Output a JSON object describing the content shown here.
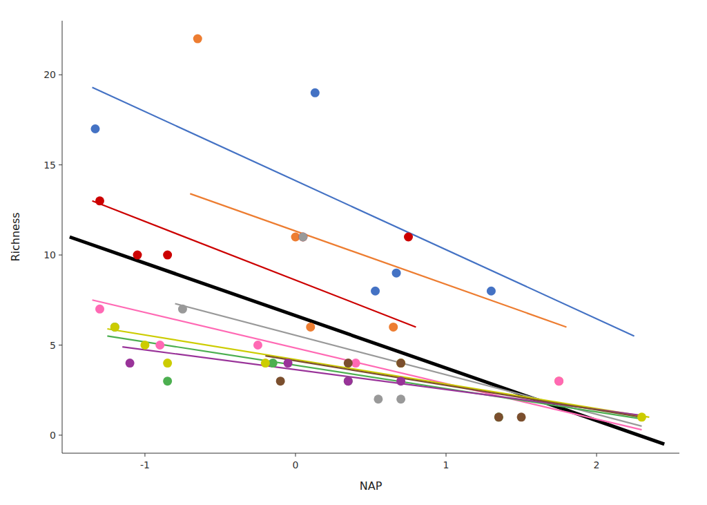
{
  "chart_data": {
    "type": "scatter",
    "xlabel": "NAP",
    "ylabel": "Richness",
    "xlim": [
      -1.55,
      2.55
    ],
    "ylim": [
      -1.0,
      23.0
    ],
    "xticks": [
      -1,
      0,
      1,
      2
    ],
    "yticks": [
      0,
      5,
      10,
      15,
      20
    ],
    "grid": false,
    "series": [
      {
        "type": "line",
        "color": "#4472C4",
        "x": [
          -1.35,
          2.25
        ],
        "values": [
          19.3,
          5.5
        ]
      },
      {
        "type": "scatter",
        "color": "#4472C4",
        "x": [
          -1.33,
          0.13,
          0.53,
          0.67,
          1.3
        ],
        "values": [
          17,
          19,
          8,
          9,
          8
        ]
      },
      {
        "type": "line",
        "color": "#ED7D31",
        "x": [
          -0.7,
          1.8
        ],
        "values": [
          13.4,
          6.0
        ]
      },
      {
        "type": "scatter",
        "color": "#ED7D31",
        "x": [
          -0.65,
          0.0,
          0.1,
          0.65,
          1.75
        ],
        "values": [
          22,
          11,
          6,
          6,
          3
        ]
      },
      {
        "type": "line",
        "color": "#CC0000",
        "x": [
          -1.35,
          0.8
        ],
        "values": [
          13.0,
          6.0
        ]
      },
      {
        "type": "scatter",
        "color": "#CC0000",
        "x": [
          -1.3,
          -1.05,
          -0.85,
          0.05,
          0.75
        ],
        "values": [
          13,
          10,
          10,
          11,
          11
        ]
      },
      {
        "type": "line",
        "color": "#FF69B4",
        "x": [
          -1.35,
          2.3
        ],
        "values": [
          7.5,
          0.3
        ]
      },
      {
        "type": "scatter",
        "color": "#FF69B4",
        "x": [
          -1.3,
          -0.9,
          -0.25,
          0.4,
          1.75
        ],
        "values": [
          7,
          5,
          5,
          4,
          3
        ]
      },
      {
        "type": "line",
        "color": "#999999",
        "x": [
          -0.8,
          2.3
        ],
        "values": [
          7.3,
          0.5
        ]
      },
      {
        "type": "scatter",
        "color": "#999999",
        "x": [
          -0.75,
          0.05,
          0.55,
          0.7
        ],
        "values": [
          7,
          11,
          2,
          2
        ]
      },
      {
        "type": "line",
        "color": "#4CAF50",
        "x": [
          -1.25,
          2.3
        ],
        "values": [
          5.5,
          0.9
        ]
      },
      {
        "type": "scatter",
        "color": "#4CAF50",
        "x": [
          -1.2,
          -0.85,
          -0.15,
          0.35,
          1.35
        ],
        "values": [
          6,
          3,
          4,
          3,
          1
        ]
      },
      {
        "type": "line",
        "color": "#CCCC00",
        "x": [
          -1.25,
          2.35
        ],
        "values": [
          5.9,
          1.0
        ]
      },
      {
        "type": "scatter",
        "color": "#CCCC00",
        "x": [
          -1.2,
          -1.0,
          -0.85,
          -0.2,
          0.7,
          2.3
        ],
        "values": [
          6,
          5,
          4,
          4,
          4,
          1
        ]
      },
      {
        "type": "line",
        "color": "#993399",
        "x": [
          -1.15,
          2.3
        ],
        "values": [
          4.9,
          1.1
        ]
      },
      {
        "type": "scatter",
        "color": "#993399",
        "x": [
          -1.1,
          -0.05,
          0.35,
          0.7
        ],
        "values": [
          4,
          4,
          3,
          3
        ]
      },
      {
        "type": "line",
        "color": "#7B4F2E",
        "x": [
          -0.2,
          2.3
        ],
        "values": [
          4.4,
          1.0
        ]
      },
      {
        "type": "scatter",
        "color": "#7B4F2E",
        "x": [
          -0.1,
          0.35,
          0.7,
          1.35,
          1.5
        ],
        "values": [
          3,
          4,
          4,
          1,
          1
        ]
      },
      {
        "type": "line",
        "color": "#000000",
        "x": [
          -1.5,
          2.45
        ],
        "values": [
          11.0,
          -0.5
        ]
      }
    ]
  }
}
